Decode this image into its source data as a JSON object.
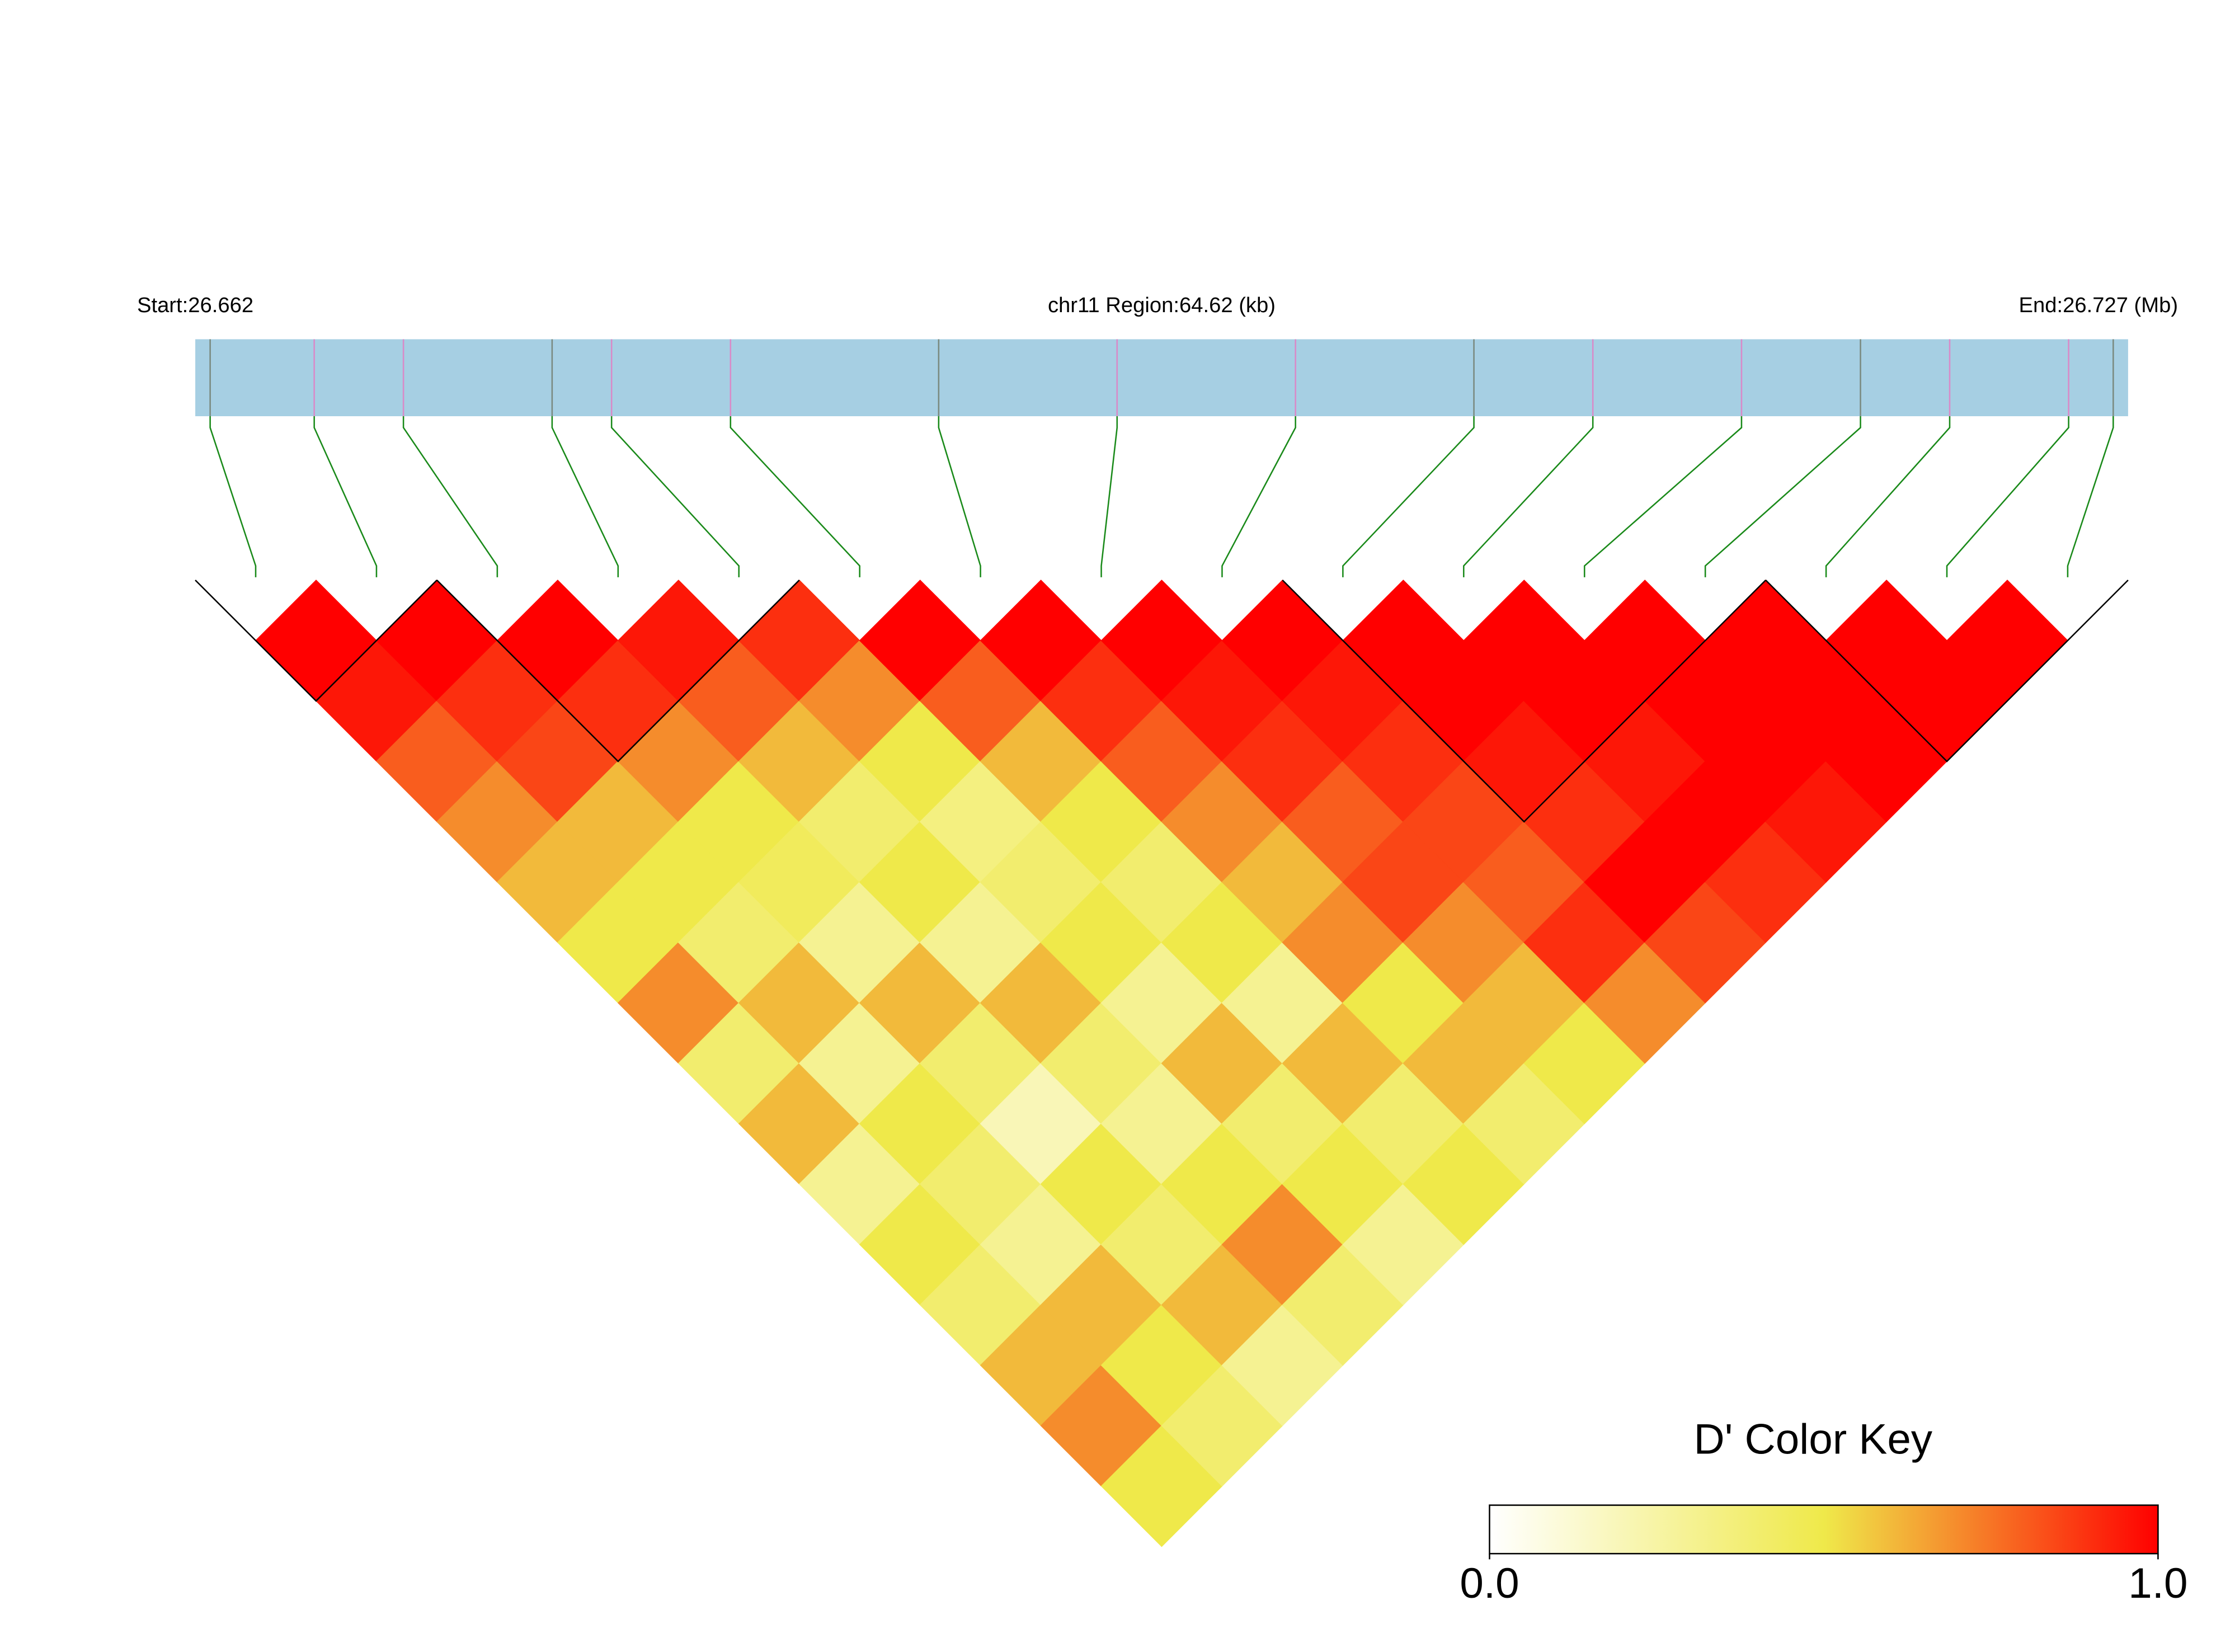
{
  "chart_data": {
    "type": "ld_heatmap",
    "start_label": "Start:26.662",
    "region_label": "chr11 Region:64.62 (kb)",
    "end_label": "End:26.727 (Mb)",
    "xlim": [
      26.662,
      26.727
    ],
    "positions": [
      26.6625,
      26.666,
      26.669,
      26.674,
      26.676,
      26.68,
      26.687,
      26.693,
      26.699,
      26.705,
      26.709,
      26.714,
      26.718,
      26.721,
      26.725,
      26.7265
    ],
    "dprime": [
      [
        1,
        0.95,
        0.8,
        0.7,
        0.6,
        0.5,
        0.7,
        0.4,
        0.6,
        0.3,
        0.5,
        0.4,
        0.6,
        0.7,
        0.5
      ],
      [
        1,
        0.9,
        0.85,
        0.6,
        0.5,
        0.4,
        0.6,
        0.3,
        0.5,
        0.4,
        0.3,
        0.6,
        0.5,
        0.4
      ],
      [
        1,
        0.9,
        0.7,
        0.5,
        0.45,
        0.3,
        0.6,
        0.4,
        0.2,
        0.5,
        0.4,
        0.6,
        0.3
      ],
      [
        0.95,
        0.8,
        0.6,
        0.4,
        0.5,
        0.3,
        0.6,
        0.4,
        0.3,
        0.5,
        0.7,
        0.4
      ],
      [
        0.9,
        0.7,
        0.5,
        0.35,
        0.4,
        0.5,
        0.3,
        0.6,
        0.4,
        0.5,
        0.3
      ],
      [
        1,
        0.8,
        0.6,
        0.5,
        0.4,
        0.5,
        0.3,
        0.6,
        0.4,
        0.5
      ],
      [
        1,
        0.9,
        0.8,
        0.7,
        0.6,
        0.7,
        0.5,
        0.6,
        0.4
      ],
      [
        1,
        0.95,
        0.9,
        0.8,
        0.85,
        0.7,
        0.6,
        0.5
      ],
      [
        1,
        0.95,
        0.9,
        0.85,
        0.8,
        0.9,
        0.7
      ],
      [
        1,
        1,
        0.95,
        0.9,
        1,
        0.85
      ],
      [
        1,
        1,
        0.95,
        1,
        0.9
      ],
      [
        1,
        1,
        1,
        0.95
      ],
      [
        1,
        1,
        1
      ],
      [
        1,
        1
      ],
      [
        1
      ]
    ],
    "blocks": [
      [
        0,
        1
      ],
      [
        2,
        4
      ],
      [
        9,
        12
      ],
      [
        13,
        15
      ]
    ],
    "colors": [
      "#ffffff",
      "#efe94a",
      "#ff0000"
    ],
    "key_title": "D' Color Key",
    "key_ticks": [
      {
        "value": 0,
        "label": "0.0"
      },
      {
        "value": 1,
        "label": "1.0"
      }
    ]
  }
}
